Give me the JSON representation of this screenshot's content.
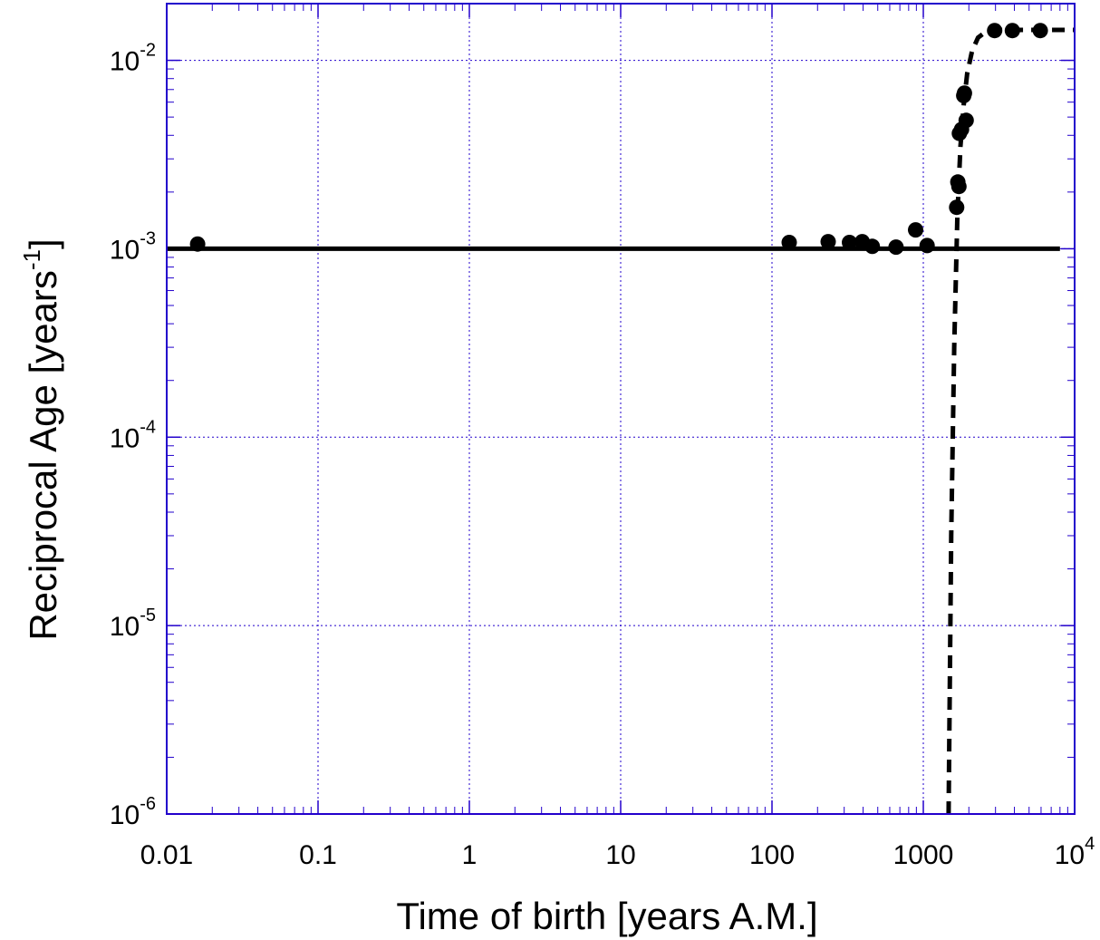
{
  "chart_data": {
    "type": "scatter",
    "xlabel": "Time of birth [years A.M.]",
    "ylabel": {
      "text": "Reciprocal Age [years",
      "superscript": "-1",
      "suffix": "]"
    },
    "x_scale": "log",
    "y_scale": "log",
    "xlim": [
      0.01,
      10000
    ],
    "ylim": [
      1e-06,
      0.02
    ],
    "grid": true,
    "colors": {
      "axes": "#2200cc",
      "grid": "#2200cc",
      "data": "#000000"
    },
    "x_ticks": [
      {
        "value": 0.01,
        "label": "0.01"
      },
      {
        "value": 0.1,
        "label": "0.1"
      },
      {
        "value": 1,
        "label": "1"
      },
      {
        "value": 10,
        "label": "10"
      },
      {
        "value": 100,
        "label": "100"
      },
      {
        "value": 1000,
        "label": "1000"
      },
      {
        "value": 10000,
        "label": "10",
        "exponent": "4"
      }
    ],
    "y_ticks": [
      {
        "value": 1e-06,
        "label": "10",
        "exponent": "-6"
      },
      {
        "value": 1e-05,
        "label": "10",
        "exponent": "-5"
      },
      {
        "value": 0.0001,
        "label": "10",
        "exponent": "-4"
      },
      {
        "value": 0.001,
        "label": "10",
        "exponent": "-3"
      },
      {
        "value": 0.01,
        "label": "10",
        "exponent": "-2"
      }
    ],
    "series": [
      {
        "kind": "points",
        "x": [
          0.016,
          130,
          235,
          325,
          395,
          460,
          660,
          890,
          1060,
          1660,
          1690,
          1720,
          1730,
          1790,
          1850,
          1870,
          1920,
          2960,
          3880,
          5930
        ],
        "y": [
          0.00106,
          0.00108,
          0.00109,
          0.00108,
          0.00109,
          0.00103,
          0.00102,
          0.00126,
          0.00104,
          0.00166,
          0.00226,
          0.00214,
          0.0041,
          0.0043,
          0.0065,
          0.0067,
          0.0048,
          0.0144,
          0.0144,
          0.0144
        ]
      },
      {
        "kind": "line",
        "style": "solid",
        "x": [
          0.01,
          8000
        ],
        "y": [
          0.001,
          0.001
        ]
      },
      {
        "kind": "line",
        "style": "dashed",
        "x": [
          1470,
          1530,
          1600,
          1680,
          1760,
          1850,
          1950,
          2100,
          2300,
          2600,
          3000,
          5000,
          10000
        ],
        "y": [
          1e-06,
          3e-05,
          0.0003,
          0.0015,
          0.0035,
          0.0058,
          0.0085,
          0.0112,
          0.0132,
          0.0142,
          0.0145,
          0.0145,
          0.0145
        ]
      }
    ]
  }
}
